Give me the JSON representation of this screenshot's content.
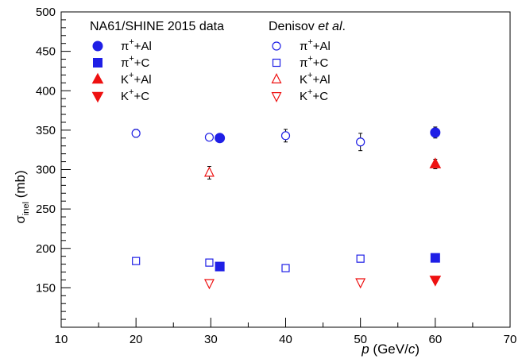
{
  "chart_data": {
    "type": "scatter",
    "title": "",
    "xlabel_italic": "p",
    "xlabel_rest": " (GeV/",
    "xlabel_unit_italic": "c",
    "xlabel_close": ")",
    "ylabel_main": "σ",
    "ylabel_sub": "inel",
    "ylabel_rest": " (mb)",
    "xlim": [
      10,
      70
    ],
    "ylim": [
      100,
      500
    ],
    "x_ticks": [
      10,
      20,
      30,
      40,
      50,
      60,
      70
    ],
    "y_ticks": [
      150,
      200,
      250,
      300,
      350,
      400,
      450,
      500
    ],
    "legend_groups": [
      {
        "title": "NA61/SHINE 2015 data",
        "title_italic": "",
        "title_suffix": ""
      },
      {
        "title": "Denisov ",
        "title_italic": "et al",
        "title_suffix": "."
      }
    ],
    "colors": {
      "blue": "#1f1fe6",
      "red": "#ee1111"
    },
    "series": [
      {
        "name": "π⁺+Al",
        "label_base": "π",
        "label_sup": "+",
        "label_rest": "+Al",
        "group": "NA61/SHINE 2015 data",
        "marker": "filled-circle",
        "color": "#1f1fe6",
        "points": [
          {
            "x": 31.2,
            "y": 340,
            "err": 5
          },
          {
            "x": 60,
            "y": 347,
            "err": 7
          }
        ]
      },
      {
        "name": "π⁺+C",
        "label_base": "π",
        "label_sup": "+",
        "label_rest": "+C",
        "group": "NA61/SHINE 2015 data",
        "marker": "filled-square",
        "color": "#1f1fe6",
        "points": [
          {
            "x": 31.2,
            "y": 177,
            "err": 3
          },
          {
            "x": 60,
            "y": 188,
            "err": 4
          }
        ]
      },
      {
        "name": "K⁺+Al",
        "label_base": "K",
        "label_sup": "+",
        "label_rest": "+Al",
        "group": "NA61/SHINE 2015 data",
        "marker": "filled-triangle-up",
        "color": "#ee1111",
        "points": [
          {
            "x": 60,
            "y": 307,
            "err": 6
          }
        ]
      },
      {
        "name": "K⁺+C",
        "label_base": "K",
        "label_sup": "+",
        "label_rest": "+C",
        "group": "NA61/SHINE 2015 data",
        "marker": "filled-triangle-down",
        "color": "#ee1111",
        "points": [
          {
            "x": 60,
            "y": 160,
            "err": 3
          }
        ]
      },
      {
        "name": "π⁺+Al",
        "label_base": "π",
        "label_sup": "+",
        "label_rest": "+Al",
        "group": "Denisov et al.",
        "marker": "open-circle",
        "color": "#1f1fe6",
        "points": [
          {
            "x": 20,
            "y": 346,
            "err": 5
          },
          {
            "x": 29.8,
            "y": 341,
            "err": 4
          },
          {
            "x": 40,
            "y": 343,
            "err": 8
          },
          {
            "x": 50,
            "y": 335,
            "err": 11
          }
        ]
      },
      {
        "name": "π⁺+C",
        "label_base": "π",
        "label_sup": "+",
        "label_rest": "+C",
        "group": "Denisov et al.",
        "marker": "open-square",
        "color": "#1f1fe6",
        "points": [
          {
            "x": 20,
            "y": 184,
            "err": 2
          },
          {
            "x": 29.8,
            "y": 182,
            "err": 2
          },
          {
            "x": 40,
            "y": 175,
            "err": 2
          },
          {
            "x": 50,
            "y": 187,
            "err": 2
          }
        ]
      },
      {
        "name": "K⁺+Al",
        "label_base": "K",
        "label_sup": "+",
        "label_rest": "+Al",
        "group": "Denisov et al.",
        "marker": "open-triangle-up",
        "color": "#ee1111",
        "points": [
          {
            "x": 29.8,
            "y": 296,
            "err": 8
          }
        ]
      },
      {
        "name": "K⁺+C",
        "label_base": "K",
        "label_sup": "+",
        "label_rest": "+C",
        "group": "Denisov et al.",
        "marker": "open-triangle-down",
        "color": "#ee1111",
        "points": [
          {
            "x": 29.8,
            "y": 156,
            "err": 2
          },
          {
            "x": 50,
            "y": 157,
            "err": 2
          }
        ]
      }
    ]
  }
}
